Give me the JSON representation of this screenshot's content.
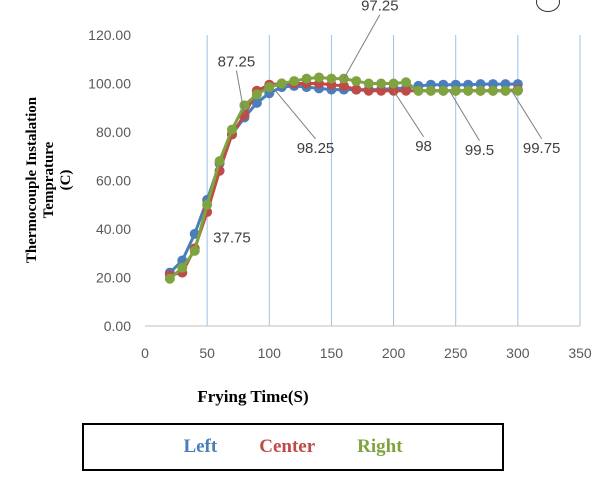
{
  "chart_data": {
    "type": "line",
    "title": "",
    "xlabel": "Frying Time(S)",
    "ylabel_lines": [
      "Thermocouple Instalation",
      "Temprature",
      "(C)"
    ],
    "xlim": [
      0,
      350
    ],
    "ylim": [
      0,
      120
    ],
    "x_ticks": [
      0,
      50,
      100,
      150,
      200,
      250,
      300,
      350
    ],
    "y_ticks": [
      "0.00",
      "20.00",
      "40.00",
      "60.00",
      "80.00",
      "100.00",
      "120.00"
    ],
    "grid": "vertical",
    "legend_position": "bottom",
    "x": [
      20,
      30,
      40,
      50,
      60,
      70,
      80,
      90,
      100,
      110,
      120,
      130,
      140,
      150,
      160,
      170,
      180,
      190,
      200,
      210,
      220,
      230,
      240,
      250,
      260,
      270,
      280,
      290,
      300
    ],
    "series": [
      {
        "name": "Left",
        "color": "#4A7EBB",
        "values": [
          22,
          27,
          38,
          52,
          67,
          79,
          86,
          92,
          96,
          98.5,
          99,
          98.5,
          98,
          97.5,
          97.5,
          97.5,
          97.5,
          97.5,
          98,
          98,
          99,
          99.5,
          99.5,
          99.5,
          99.5,
          99.75,
          99.75,
          99.75,
          99.75
        ]
      },
      {
        "name": "Center",
        "color": "#BE4B48",
        "values": [
          21,
          22,
          32,
          47,
          64,
          79,
          87,
          97,
          99.5,
          100,
          100,
          100,
          100,
          99.5,
          99,
          97.5,
          97,
          97,
          97,
          97,
          97,
          97,
          97,
          97,
          97,
          97,
          97,
          97,
          97.5
        ]
      },
      {
        "name": "Right",
        "color": "#7FA33E",
        "values": [
          19.5,
          24,
          31,
          50,
          68,
          81,
          91,
          95.5,
          98.5,
          100,
          101,
          102,
          102.5,
          102,
          102,
          101,
          100,
          100,
          100,
          100.5,
          97,
          97,
          97,
          97,
          97,
          97,
          97,
          97,
          97
        ]
      }
    ],
    "annotations": [
      {
        "text": "37.75",
        "x": 50,
        "y": 37.75,
        "dx": 0,
        "dy": 0
      },
      {
        "text": "87.25",
        "x": 80,
        "y": 87.25,
        "dx": -8,
        "dy": -48
      },
      {
        "text": "98.25",
        "x": 105,
        "y": 97,
        "dx": 40,
        "dy": 62
      },
      {
        "text": "97.25",
        "x": 160,
        "y": 102,
        "dx": 36,
        "dy": -68
      },
      {
        "text": "98",
        "x": 200,
        "y": 97,
        "dx": 30,
        "dy": 60
      },
      {
        "text": "99.5",
        "x": 245,
        "y": 97,
        "dx": 30,
        "dy": 64
      },
      {
        "text": "99.75",
        "x": 295,
        "y": 97,
        "dx": 30,
        "dy": 62
      }
    ]
  }
}
